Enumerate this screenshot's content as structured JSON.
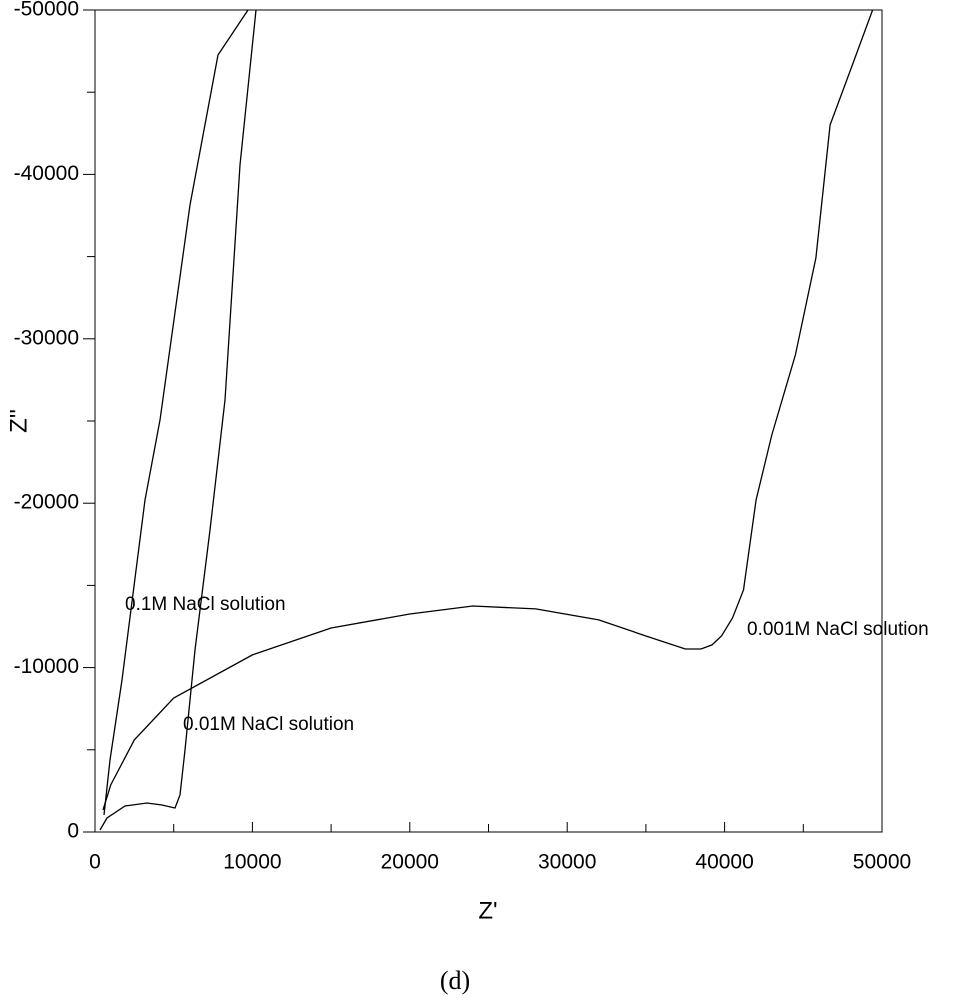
{
  "chart_data": {
    "type": "line",
    "x_label": "Z'",
    "y_label": "Z''",
    "caption": "(d)",
    "xlim": [
      0,
      50000
    ],
    "ylim": [
      0,
      -50000
    ],
    "xticks": [
      0,
      10000,
      20000,
      30000,
      40000,
      50000
    ],
    "yticks": [
      0,
      -10000,
      -20000,
      -30000,
      -40000,
      -50000
    ],
    "xminorticks": [
      5000,
      15000,
      25000,
      35000,
      45000
    ],
    "yminorticks": [
      -5000,
      -15000,
      -25000,
      -35000,
      -45000
    ],
    "series": [
      {
        "name": "0.1M NaCl solution",
        "color": "#000000",
        "x": [
          572,
          953,
          1715,
          3177,
          4130,
          6036,
          7814,
          9720
        ],
        "values": [
          -1034,
          -4380,
          -9246,
          -20195,
          -25060,
          -38140,
          -47260,
          -50000
        ]
      },
      {
        "name": "0.01M NaCl solution",
        "color": "#000000",
        "x": [
          318,
          762,
          1906,
          3304,
          4257,
          5083,
          5400,
          5718,
          6353,
          7306,
          8259,
          9212,
          10229
        ],
        "values": [
          -120,
          -850,
          -1580,
          -1764,
          -1642,
          -1460,
          -2250,
          -4990,
          -11070,
          -18370,
          -26280,
          -40570,
          -50000
        ]
      },
      {
        "name": "0.001M NaCl solution",
        "color": "#000000",
        "x": [
          508,
          1000,
          2500,
          5000,
          10000,
          15000,
          20000,
          24000,
          28000,
          32000,
          35000,
          37500,
          38500,
          39200,
          39800,
          40500,
          41200,
          42000,
          43000,
          44500,
          45800,
          46700,
          48000,
          49400
        ],
        "values": [
          -1340,
          -2860,
          -5600,
          -8150,
          -10770,
          -12410,
          -13260,
          -13750,
          -13570,
          -12900,
          -11920,
          -11130,
          -11130,
          -11380,
          -11920,
          -13020,
          -14720,
          -20200,
          -24150,
          -29020,
          -34920,
          -43010,
          -46350,
          -50000
        ]
      }
    ]
  }
}
